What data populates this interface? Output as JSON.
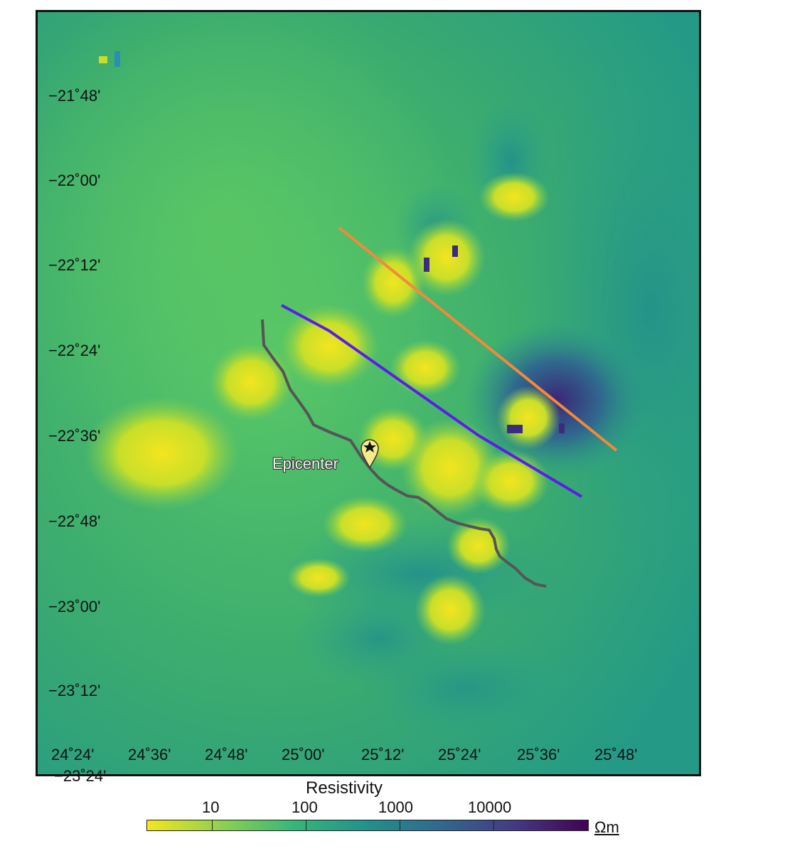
{
  "map": {
    "lat_labels": [
      "−21˚48'",
      "−22˚00'",
      "−22˚12'",
      "−22˚24'",
      "−22˚36'",
      "−22˚48'",
      "−23˚00'",
      "−23˚12'"
    ],
    "lon_labels": [
      "24˚24'",
      "24˚36'",
      "24˚48'",
      "25˚00'",
      "25˚12'",
      "25˚24'",
      "25˚36'",
      "25˚48'"
    ],
    "bottom_lat_label": "−23˚24'",
    "epicenter_label": "Epicenter",
    "line_colors": {
      "orange": "#f28a3a",
      "blue": "#5a1ee8",
      "dark": "#555555"
    }
  },
  "colorbar": {
    "title": "Resistivity",
    "ticks": [
      "10",
      "100",
      "1000",
      "10000"
    ],
    "unit": "Ωm",
    "colors": [
      "#f4e61e",
      "#8fd14f",
      "#35b779",
      "#21918c",
      "#31688e",
      "#443983",
      "#440154"
    ]
  }
}
